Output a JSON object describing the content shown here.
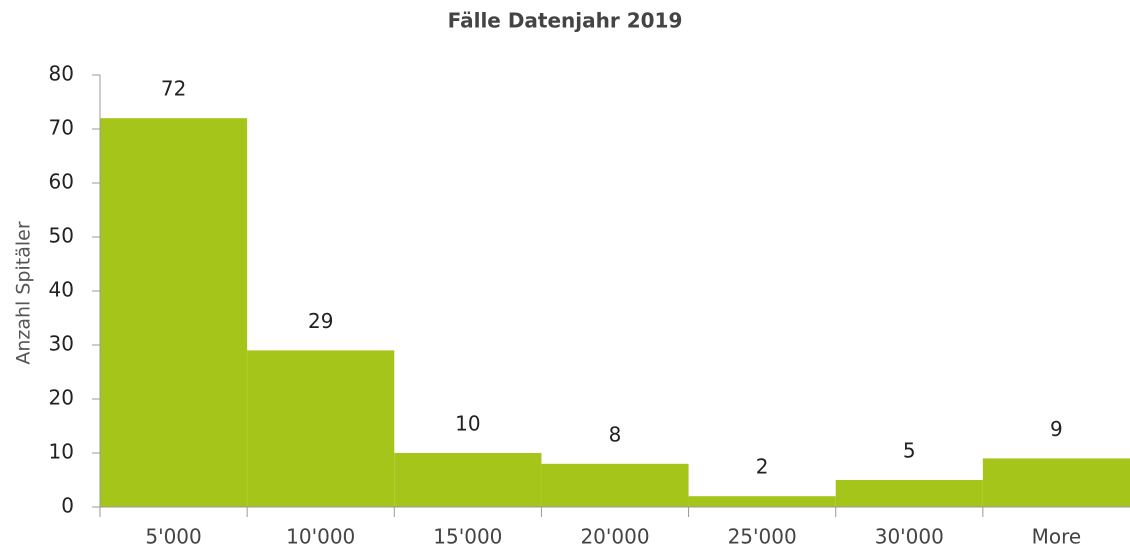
{
  "chart_data": {
    "type": "bar",
    "title": "Fälle Datenjahr 2019",
    "ylabel": "Anzahl Spitäler",
    "categories": [
      "5'000",
      "10'000",
      "15'000",
      "20'000",
      "25'000",
      "30'000",
      "More"
    ],
    "values": [
      72,
      29,
      10,
      8,
      2,
      5,
      9
    ],
    "color": "#a6c51a",
    "ylim": [
      0,
      80
    ],
    "yticks": [
      0,
      10,
      20,
      30,
      40,
      50,
      60,
      70,
      80
    ],
    "grid": false
  }
}
